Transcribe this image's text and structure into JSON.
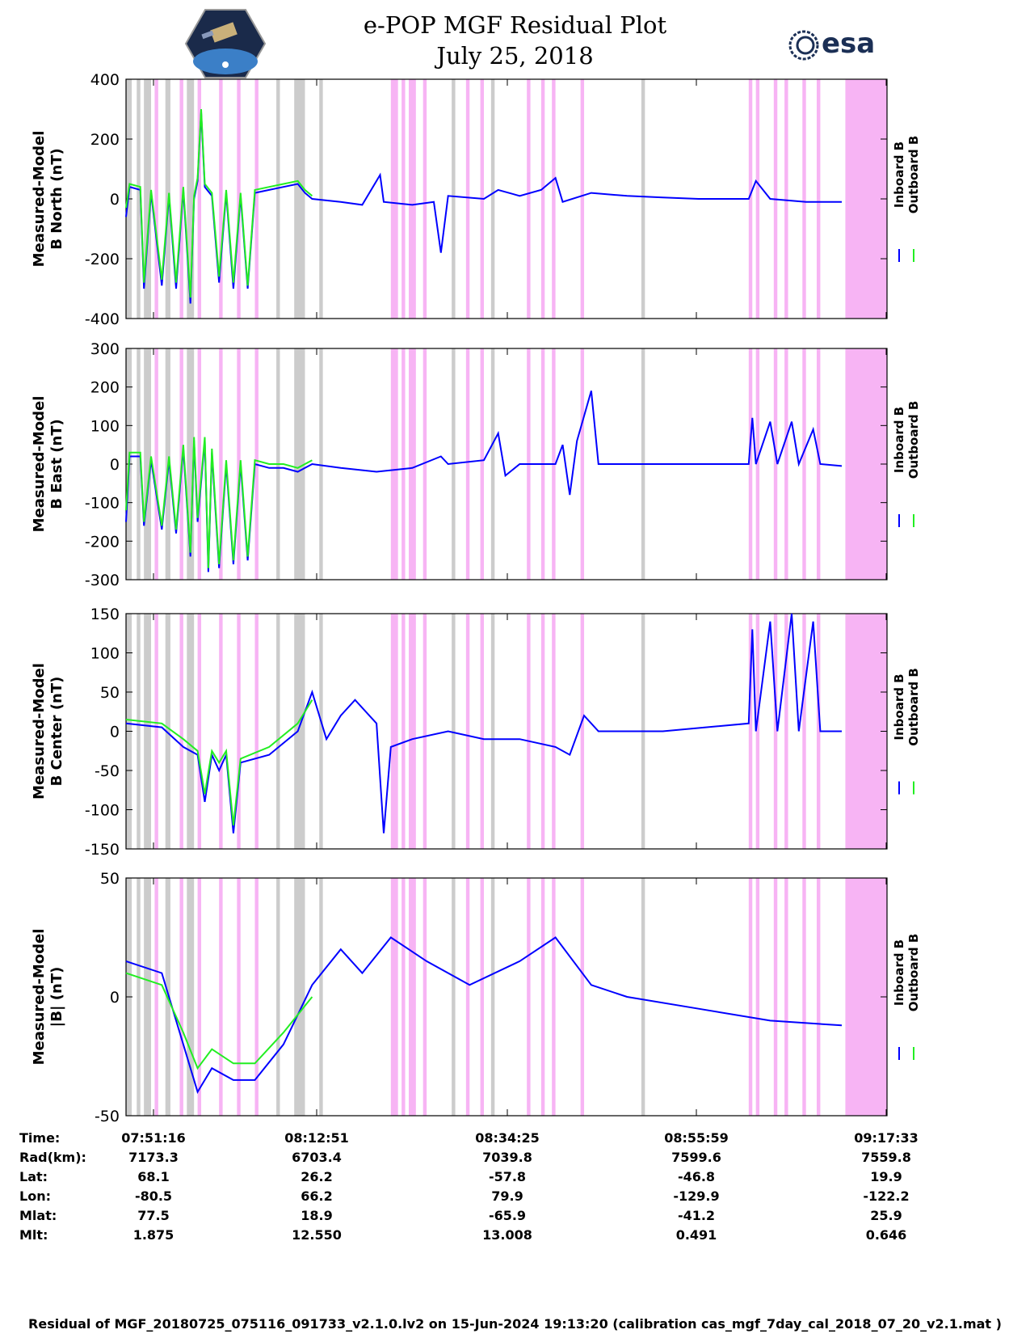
{
  "header": {
    "title_line1": "e-POP MGF Residual Plot",
    "title_line2": "July 25, 2018",
    "logo_left_name": "cassiope-logo",
    "logo_right_text": "esa"
  },
  "colors": {
    "inboard": "#0000ff",
    "outboard": "#22ee22",
    "band_pink": "#f7b4f4",
    "band_gray": "#cccccc",
    "band_gray_dark": "#d6c6d6"
  },
  "chart_data": [
    {
      "type": "line",
      "ylabel_line1": "Measured-Model",
      "ylabel_line2": "B North (nT)",
      "ylim": [
        -400,
        400
      ],
      "yticks": [
        "400",
        "200",
        "0",
        "-200",
        "-400"
      ],
      "ytick_values": [
        400,
        200,
        0,
        -200,
        -400
      ],
      "series": [
        {
          "name": "Inboard B"
        },
        {
          "name": "Outboard B"
        }
      ],
      "inboard_points": [
        [
          0,
          -60
        ],
        [
          0.005,
          40
        ],
        [
          0.02,
          30
        ],
        [
          0.025,
          -300
        ],
        [
          0.035,
          20
        ],
        [
          0.05,
          -290
        ],
        [
          0.06,
          10
        ],
        [
          0.07,
          -300
        ],
        [
          0.08,
          30
        ],
        [
          0.09,
          -350
        ],
        [
          0.095,
          0
        ],
        [
          0.1,
          60
        ],
        [
          0.105,
          290
        ],
        [
          0.11,
          40
        ],
        [
          0.12,
          10
        ],
        [
          0.13,
          -280
        ],
        [
          0.14,
          20
        ],
        [
          0.15,
          -300
        ],
        [
          0.16,
          10
        ],
        [
          0.17,
          -300
        ],
        [
          0.18,
          20
        ],
        [
          0.2,
          30
        ],
        [
          0.22,
          40
        ],
        [
          0.24,
          50
        ],
        [
          0.25,
          20
        ],
        [
          0.26,
          0
        ],
        [
          0.3,
          -10
        ],
        [
          0.33,
          -20
        ],
        [
          0.355,
          80
        ],
        [
          0.36,
          -10
        ],
        [
          0.4,
          -20
        ],
        [
          0.43,
          -10
        ],
        [
          0.44,
          -180
        ],
        [
          0.45,
          10
        ],
        [
          0.5,
          0
        ],
        [
          0.52,
          30
        ],
        [
          0.55,
          10
        ],
        [
          0.58,
          30
        ],
        [
          0.6,
          70
        ],
        [
          0.61,
          -10
        ],
        [
          0.65,
          20
        ],
        [
          0.7,
          10
        ],
        [
          0.75,
          5
        ],
        [
          0.8,
          0
        ],
        [
          0.87,
          0
        ],
        [
          0.88,
          60
        ],
        [
          0.9,
          0
        ],
        [
          0.95,
          -10
        ],
        [
          1,
          -10
        ]
      ],
      "outboard_points": [
        [
          0,
          -30
        ],
        [
          0.005,
          50
        ],
        [
          0.02,
          40
        ],
        [
          0.025,
          -280
        ],
        [
          0.035,
          30
        ],
        [
          0.05,
          -270
        ],
        [
          0.06,
          20
        ],
        [
          0.07,
          -280
        ],
        [
          0.08,
          40
        ],
        [
          0.09,
          -330
        ],
        [
          0.095,
          10
        ],
        [
          0.1,
          70
        ],
        [
          0.105,
          300
        ],
        [
          0.11,
          50
        ],
        [
          0.12,
          20
        ],
        [
          0.13,
          -260
        ],
        [
          0.14,
          30
        ],
        [
          0.15,
          -280
        ],
        [
          0.16,
          20
        ],
        [
          0.17,
          -290
        ],
        [
          0.18,
          30
        ],
        [
          0.2,
          40
        ],
        [
          0.22,
          50
        ],
        [
          0.24,
          60
        ],
        [
          0.25,
          30
        ],
        [
          0.26,
          10
        ]
      ]
    },
    {
      "type": "line",
      "ylabel_line1": "Measured-Model",
      "ylabel_line2": "B East (nT)",
      "ylim": [
        -300,
        300
      ],
      "yticks": [
        "300",
        "200",
        "100",
        "0",
        "-100",
        "-200",
        "-300"
      ],
      "ytick_values": [
        300,
        200,
        100,
        0,
        -100,
        -200,
        -300
      ],
      "series": [
        {
          "name": "Inboard B"
        },
        {
          "name": "Outboard B"
        }
      ],
      "inboard_points": [
        [
          0,
          -150
        ],
        [
          0.005,
          20
        ],
        [
          0.02,
          20
        ],
        [
          0.025,
          -160
        ],
        [
          0.035,
          10
        ],
        [
          0.05,
          -170
        ],
        [
          0.06,
          10
        ],
        [
          0.07,
          -180
        ],
        [
          0.08,
          40
        ],
        [
          0.09,
          -240
        ],
        [
          0.095,
          60
        ],
        [
          0.1,
          -150
        ],
        [
          0.11,
          60
        ],
        [
          0.115,
          -280
        ],
        [
          0.12,
          30
        ],
        [
          0.13,
          -270
        ],
        [
          0.14,
          0
        ],
        [
          0.15,
          -260
        ],
        [
          0.16,
          0
        ],
        [
          0.17,
          -250
        ],
        [
          0.18,
          0
        ],
        [
          0.2,
          -10
        ],
        [
          0.22,
          -10
        ],
        [
          0.24,
          -20
        ],
        [
          0.25,
          -10
        ],
        [
          0.26,
          0
        ],
        [
          0.3,
          -10
        ],
        [
          0.35,
          -20
        ],
        [
          0.4,
          -10
        ],
        [
          0.44,
          20
        ],
        [
          0.45,
          0
        ],
        [
          0.5,
          10
        ],
        [
          0.52,
          80
        ],
        [
          0.53,
          -30
        ],
        [
          0.55,
          0
        ],
        [
          0.6,
          0
        ],
        [
          0.61,
          50
        ],
        [
          0.62,
          -80
        ],
        [
          0.63,
          60
        ],
        [
          0.65,
          190
        ],
        [
          0.66,
          0
        ],
        [
          0.7,
          0
        ],
        [
          0.8,
          0
        ],
        [
          0.87,
          0
        ],
        [
          0.875,
          120
        ],
        [
          0.88,
          0
        ],
        [
          0.9,
          110
        ],
        [
          0.91,
          0
        ],
        [
          0.93,
          110
        ],
        [
          0.94,
          0
        ],
        [
          0.96,
          90
        ],
        [
          0.97,
          0
        ],
        [
          1,
          -5
        ]
      ],
      "outboard_points": [
        [
          0,
          -120
        ],
        [
          0.005,
          30
        ],
        [
          0.02,
          30
        ],
        [
          0.025,
          -150
        ],
        [
          0.035,
          20
        ],
        [
          0.05,
          -160
        ],
        [
          0.06,
          20
        ],
        [
          0.07,
          -170
        ],
        [
          0.08,
          50
        ],
        [
          0.09,
          -230
        ],
        [
          0.095,
          70
        ],
        [
          0.1,
          -140
        ],
        [
          0.11,
          70
        ],
        [
          0.115,
          -270
        ],
        [
          0.12,
          40
        ],
        [
          0.13,
          -260
        ],
        [
          0.14,
          10
        ],
        [
          0.15,
          -250
        ],
        [
          0.16,
          10
        ],
        [
          0.17,
          -240
        ],
        [
          0.18,
          10
        ],
        [
          0.2,
          0
        ],
        [
          0.22,
          0
        ],
        [
          0.24,
          -10
        ],
        [
          0.25,
          0
        ],
        [
          0.26,
          10
        ]
      ]
    },
    {
      "type": "line",
      "ylabel_line1": "Measured-Model",
      "ylabel_line2": "B Center (nT)",
      "ylim": [
        -150,
        150
      ],
      "yticks": [
        "150",
        "100",
        "50",
        "0",
        "-50",
        "-100",
        "-150"
      ],
      "ytick_values": [
        150,
        100,
        50,
        0,
        -50,
        -100,
        -150
      ],
      "series": [
        {
          "name": "Inboard B"
        },
        {
          "name": "Outboard B"
        }
      ],
      "inboard_points": [
        [
          0,
          10
        ],
        [
          0.05,
          5
        ],
        [
          0.08,
          -20
        ],
        [
          0.1,
          -30
        ],
        [
          0.11,
          -90
        ],
        [
          0.12,
          -30
        ],
        [
          0.13,
          -50
        ],
        [
          0.14,
          -30
        ],
        [
          0.15,
          -130
        ],
        [
          0.16,
          -40
        ],
        [
          0.2,
          -30
        ],
        [
          0.24,
          0
        ],
        [
          0.26,
          50
        ],
        [
          0.28,
          -10
        ],
        [
          0.3,
          20
        ],
        [
          0.32,
          40
        ],
        [
          0.35,
          10
        ],
        [
          0.36,
          -130
        ],
        [
          0.37,
          -20
        ],
        [
          0.4,
          -10
        ],
        [
          0.45,
          0
        ],
        [
          0.5,
          -10
        ],
        [
          0.55,
          -10
        ],
        [
          0.6,
          -20
        ],
        [
          0.62,
          -30
        ],
        [
          0.64,
          20
        ],
        [
          0.66,
          0
        ],
        [
          0.75,
          0
        ],
        [
          0.87,
          10
        ],
        [
          0.875,
          130
        ],
        [
          0.88,
          0
        ],
        [
          0.9,
          140
        ],
        [
          0.91,
          0
        ],
        [
          0.93,
          150
        ],
        [
          0.94,
          0
        ],
        [
          0.96,
          140
        ],
        [
          0.97,
          0
        ],
        [
          1,
          0
        ]
      ],
      "outboard_points": [
        [
          0,
          15
        ],
        [
          0.05,
          10
        ],
        [
          0.08,
          -10
        ],
        [
          0.1,
          -25
        ],
        [
          0.11,
          -80
        ],
        [
          0.12,
          -25
        ],
        [
          0.13,
          -40
        ],
        [
          0.14,
          -25
        ],
        [
          0.15,
          -120
        ],
        [
          0.16,
          -35
        ],
        [
          0.2,
          -20
        ],
        [
          0.24,
          10
        ],
        [
          0.26,
          40
        ]
      ]
    },
    {
      "type": "line",
      "ylabel_line1": "Measured-Model",
      "ylabel_line2": "|B| (nT)",
      "ylim": [
        -50,
        50
      ],
      "yticks": [
        "50",
        "0",
        "-50"
      ],
      "ytick_values": [
        50,
        0,
        -50
      ],
      "series": [
        {
          "name": "Inboard B"
        },
        {
          "name": "Outboard B"
        }
      ],
      "inboard_points": [
        [
          0,
          15
        ],
        [
          0.05,
          10
        ],
        [
          0.08,
          -20
        ],
        [
          0.1,
          -40
        ],
        [
          0.12,
          -30
        ],
        [
          0.15,
          -35
        ],
        [
          0.18,
          -35
        ],
        [
          0.22,
          -20
        ],
        [
          0.26,
          5
        ],
        [
          0.3,
          20
        ],
        [
          0.33,
          10
        ],
        [
          0.37,
          25
        ],
        [
          0.42,
          15
        ],
        [
          0.48,
          5
        ],
        [
          0.55,
          15
        ],
        [
          0.6,
          25
        ],
        [
          0.65,
          5
        ],
        [
          0.7,
          0
        ],
        [
          0.8,
          -5
        ],
        [
          0.9,
          -10
        ],
        [
          1,
          -12
        ]
      ],
      "outboard_points": [
        [
          0,
          10
        ],
        [
          0.05,
          5
        ],
        [
          0.08,
          -15
        ],
        [
          0.1,
          -30
        ],
        [
          0.12,
          -22
        ],
        [
          0.15,
          -28
        ],
        [
          0.18,
          -28
        ],
        [
          0.22,
          -15
        ],
        [
          0.26,
          0
        ]
      ]
    }
  ],
  "legend": {
    "inboard_label": "Inboard B",
    "outboard_label": "Outboard B"
  },
  "bands": {
    "pink": [
      [
        0.04,
        0.045
      ],
      [
        0.075,
        0.08
      ],
      [
        0.1,
        0.105
      ],
      [
        0.13,
        0.135
      ],
      [
        0.155,
        0.16
      ],
      [
        0.18,
        0.185
      ],
      [
        0.37,
        0.38
      ],
      [
        0.385,
        0.39
      ],
      [
        0.395,
        0.405
      ],
      [
        0.415,
        0.42
      ],
      [
        0.475,
        0.48
      ],
      [
        0.495,
        0.5
      ],
      [
        0.56,
        0.565
      ],
      [
        0.58,
        0.585
      ],
      [
        0.595,
        0.6
      ],
      [
        0.635,
        0.64
      ],
      [
        0.87,
        0.875
      ],
      [
        0.88,
        0.885
      ],
      [
        0.905,
        0.91
      ],
      [
        0.92,
        0.925
      ],
      [
        0.945,
        0.95
      ],
      [
        0.965,
        0.97
      ],
      [
        1.005,
        1.1
      ]
    ],
    "gray": [
      [
        0.0,
        0.008
      ],
      [
        0.015,
        0.02
      ],
      [
        0.025,
        0.035
      ],
      [
        0.055,
        0.062
      ],
      [
        0.085,
        0.095
      ],
      [
        0.21,
        0.215
      ],
      [
        0.235,
        0.25
      ],
      [
        0.27,
        0.275
      ],
      [
        0.455,
        0.46
      ],
      [
        0.51,
        0.515
      ],
      [
        0.72,
        0.725
      ]
    ]
  },
  "xaxis": {
    "row_labels": [
      "Time:",
      "Rad(km):",
      "Lat:",
      "Lon:",
      "Mlat:",
      "Mlt:"
    ],
    "columns": [
      {
        "time": "07:51:16",
        "rad": "7173.3",
        "lat": "68.1",
        "lon": "-80.5",
        "mlat": "77.5",
        "mlt": "1.875"
      },
      {
        "time": "08:12:51",
        "rad": "6703.4",
        "lat": "26.2",
        "lon": "66.2",
        "mlat": "18.9",
        "mlt": "12.550"
      },
      {
        "time": "08:34:25",
        "rad": "7039.8",
        "lat": "-57.8",
        "lon": "79.9",
        "mlat": "-65.9",
        "mlt": "13.008"
      },
      {
        "time": "08:55:59",
        "rad": "7599.6",
        "lat": "-46.8",
        "lon": "-129.9",
        "mlat": "-41.2",
        "mlt": "0.491"
      },
      {
        "time": "09:17:33",
        "rad": "7559.8",
        "lat": "19.9",
        "lon": "-122.2",
        "mlat": "25.9",
        "mlt": "0.646"
      }
    ]
  },
  "footer": {
    "text": "Residual of MGF_20180725_075116_091733_v2.1.0.lv2 on 15-Jun-2024 19:13:20 (calibration cas_mgf_7day_cal_2018_07_20_v2.1.mat )"
  }
}
